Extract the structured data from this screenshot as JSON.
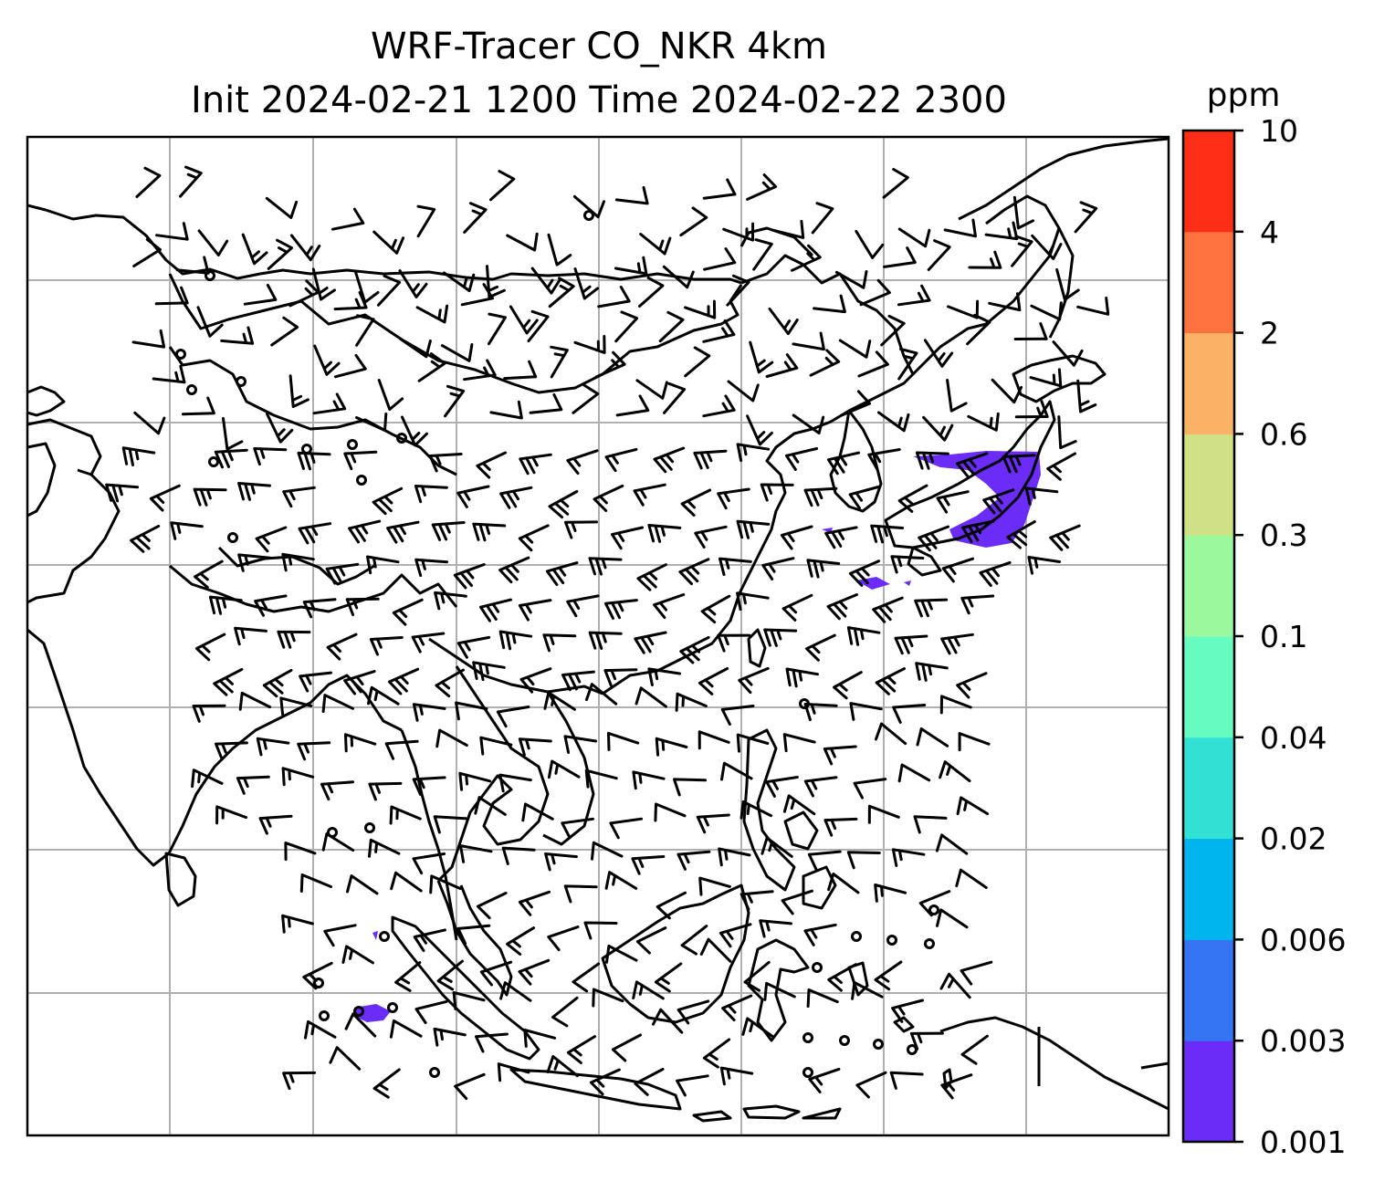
{
  "title": {
    "line1": "WRF-Tracer CO_NKR 4km",
    "line2": "Init 2024-02-21 1200 Time 2024-02-22 2300"
  },
  "colorbar": {
    "unit": "ppm",
    "levels": [
      "0.001",
      "0.003",
      "0.006",
      "0.02",
      "0.04",
      "0.1",
      "0.3",
      "0.6",
      "2",
      "4",
      "10"
    ],
    "colors": [
      "#6a2cf6",
      "#3575f4",
      "#00b4ee",
      "#33e0d4",
      "#66fbc0",
      "#9cf89d",
      "#cfe085",
      "#fcb266",
      "#fe7240",
      "#fe2e16"
    ]
  },
  "map": {
    "gridlines": "on",
    "coastline_color": "#000000",
    "barb_color": "#000000",
    "tracer_plumes": [
      {
        "region": "near Korea / East China Sea",
        "level_ppm": "0.001-0.003",
        "color": "#6a2cf6"
      },
      {
        "region": "Indian Ocean west of Sumatra",
        "level_ppm": "0.001-0.003",
        "color": "#6a2cf6"
      }
    ]
  }
}
